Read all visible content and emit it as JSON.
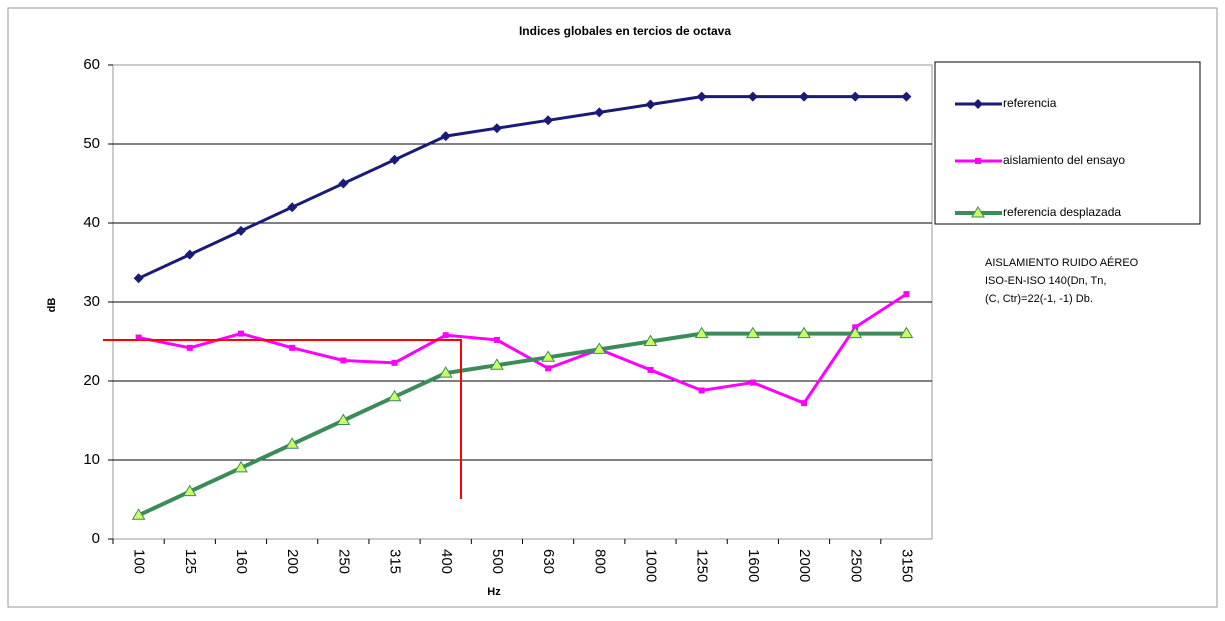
{
  "chart_data": {
    "type": "line",
    "title": "Indices globales en tercios de octava",
    "x_label": "Hz",
    "y_label": "dB",
    "categories": [
      "100",
      "125",
      "160",
      "200",
      "250",
      "315",
      "400",
      "500",
      "630",
      "800",
      "1000",
      "1250",
      "1600",
      "2000",
      "2500",
      "3150"
    ],
    "series": [
      {
        "name": "referencia",
        "color": "#1a1a78",
        "marker": "diamond",
        "values": [
          33,
          36,
          39,
          42,
          45,
          48,
          51,
          52,
          53,
          54,
          55,
          56,
          56,
          56,
          56,
          56
        ]
      },
      {
        "name": "aislamiento del ensayo",
        "color": "#ff00ff",
        "marker": "square",
        "values": [
          25.5,
          24.2,
          26,
          24.2,
          22.6,
          22.3,
          25.8,
          25.2,
          21.6,
          24,
          21.4,
          18.8,
          19.8,
          17.2,
          26.8,
          31
        ]
      },
      {
        "name": "referencia desplazada",
        "color": "#3c8c5a",
        "marker": "triangle",
        "marker_color": "#ccff66",
        "values": [
          3,
          6,
          9,
          12,
          15,
          18,
          21,
          22,
          23,
          24,
          25,
          26,
          26,
          26,
          26,
          26
        ]
      }
    ],
    "ylim": [
      0,
      60
    ],
    "yticks": [
      0,
      10,
      20,
      30,
      40,
      50,
      60
    ],
    "grid": true,
    "legend": "right",
    "annotation": [
      "AISLAMIENTO RUIDO AÉREO",
      "ISO-EN-ISO 140(Dn, Tn,",
      "(C, Ctr)=22(-1, -1) Db."
    ]
  }
}
